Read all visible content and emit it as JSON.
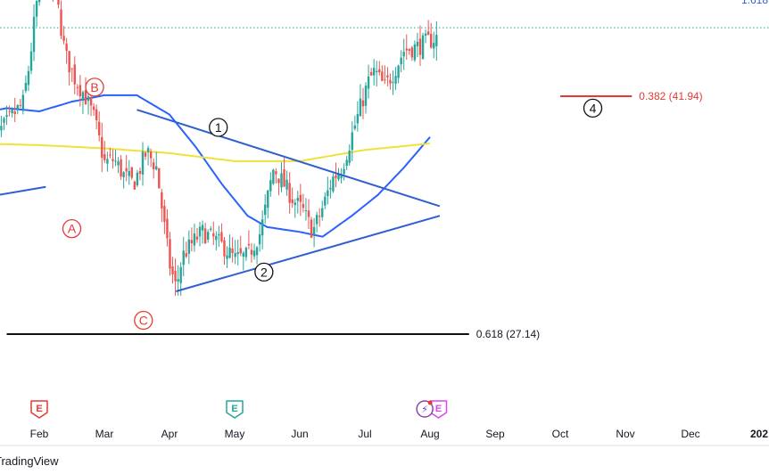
{
  "chart_data": {
    "type": "candlestick",
    "xaxis": {
      "months": [
        {
          "label": "Feb",
          "t": 1.0
        },
        {
          "label": "Mar",
          "t": 2.0
        },
        {
          "label": "Apr",
          "t": 3.0
        },
        {
          "label": "May",
          "t": 4.0
        },
        {
          "label": "Jun",
          "t": 5.0
        },
        {
          "label": "Jul",
          "t": 6.0
        },
        {
          "label": "Aug",
          "t": 7.0
        },
        {
          "label": "Sep",
          "t": 8.0
        },
        {
          "label": "Oct",
          "t": 9.0
        },
        {
          "label": "Nov",
          "t": 10.0
        },
        {
          "label": "Dec",
          "t": 11.0
        },
        {
          "label": "202",
          "t": 12.0
        }
      ]
    },
    "price_path": [
      [
        0.25,
        39.2
      ],
      [
        0.45,
        40.0
      ],
      [
        0.6,
        40.8
      ],
      [
        0.75,
        41.5
      ],
      [
        0.85,
        44.0
      ],
      [
        0.95,
        47.5
      ],
      [
        1.05,
        49.5
      ],
      [
        1.25,
        48.5
      ],
      [
        1.4,
        44.5
      ],
      [
        1.55,
        43.0
      ],
      [
        1.7,
        42.0
      ],
      [
        1.85,
        40.5
      ],
      [
        2.0,
        37.8
      ],
      [
        2.15,
        38.0
      ],
      [
        2.3,
        37.0
      ],
      [
        2.45,
        36.5
      ],
      [
        2.65,
        38.5
      ],
      [
        2.8,
        37.5
      ],
      [
        2.9,
        34.5
      ],
      [
        3.0,
        31.5
      ],
      [
        3.1,
        30.0
      ],
      [
        3.2,
        32.0
      ],
      [
        3.35,
        32.8
      ],
      [
        3.5,
        33.5
      ],
      [
        3.7,
        33.0
      ],
      [
        3.85,
        32.5
      ],
      [
        4.0,
        31.8
      ],
      [
        4.2,
        32.0
      ],
      [
        4.4,
        33.5
      ],
      [
        4.5,
        35.5
      ],
      [
        4.6,
        37.5
      ],
      [
        4.75,
        36.5
      ],
      [
        4.9,
        35.5
      ],
      [
        5.05,
        34.8
      ],
      [
        5.2,
        33.5
      ],
      [
        5.35,
        35.0
      ],
      [
        5.5,
        36.8
      ],
      [
        5.65,
        37.5
      ],
      [
        5.8,
        39.5
      ],
      [
        5.95,
        41.5
      ],
      [
        6.05,
        42.8
      ],
      [
        6.15,
        43.5
      ],
      [
        6.3,
        42.5
      ],
      [
        6.45,
        43.5
      ],
      [
        6.6,
        44.8
      ],
      [
        6.8,
        45.0
      ],
      [
        6.95,
        45.3
      ],
      [
        7.1,
        45.6
      ]
    ],
    "moving_averages": [
      {
        "color": "#2962ff",
        "points": [
          [
            0,
            40.8
          ],
          [
            0.5,
            41.2
          ],
          [
            1.0,
            41.0
          ],
          [
            1.5,
            41.6
          ],
          [
            2.0,
            42.0
          ],
          [
            2.5,
            42.0
          ],
          [
            3.0,
            40.8
          ],
          [
            3.4,
            38.8
          ],
          [
            3.8,
            36.5
          ],
          [
            4.2,
            34.5
          ],
          [
            4.5,
            33.8
          ],
          [
            5.0,
            33.5
          ],
          [
            5.35,
            33.2
          ],
          [
            5.8,
            34.5
          ],
          [
            6.2,
            35.8
          ],
          [
            6.6,
            37.5
          ],
          [
            7.0,
            39.4
          ]
        ]
      },
      {
        "color": "#f0e03a",
        "points": [
          [
            0,
            39.0
          ],
          [
            1.0,
            38.9
          ],
          [
            2.0,
            38.7
          ],
          [
            3.0,
            38.4
          ],
          [
            4.0,
            37.9
          ],
          [
            5.0,
            37.9
          ],
          [
            6.0,
            38.6
          ],
          [
            7.0,
            39.0
          ]
        ]
      }
    ],
    "trendlines": [
      {
        "color": "#2f5fd0",
        "from": [
          2.5,
          41.1
        ],
        "to": [
          7.15,
          35.1
        ]
      },
      {
        "color": "#2f5fd0",
        "from": [
          3.1,
          29.8
        ],
        "to": [
          7.15,
          34.5
        ]
      },
      {
        "color": "#2f5fd0",
        "from": [
          -0.2,
          35.4
        ],
        "to": [
          1.1,
          36.3
        ]
      }
    ],
    "fib_levels": [
      {
        "label": "0.618 (27.14)",
        "value": 27.14,
        "color": "#111111",
        "x_from": 0.5,
        "x_to": 7.6
      },
      {
        "label": "0.382 (41.94)",
        "value": 41.94,
        "color": "#e53935",
        "x_from": 9.0,
        "x_to": 10.1
      },
      {
        "label": "",
        "value": 50.6,
        "color": "#2f5fd0",
        "x_from": 6.6,
        "x_to": 12.0
      }
    ],
    "reference_level": {
      "value": 46.2,
      "color": "#26a69a",
      "style": "dotted"
    },
    "wave_labels": [
      {
        "text": "B",
        "t": 1.85,
        "v": 42.5,
        "color": "#e53935",
        "circled": true
      },
      {
        "text": "A",
        "t": 1.5,
        "v": 33.7,
        "color": "#e53935",
        "circled": true
      },
      {
        "text": "C",
        "t": 2.6,
        "v": 28.0,
        "color": "#e53935",
        "circled": true
      },
      {
        "text": "1",
        "t": 3.75,
        "v": 40.0,
        "color": "#111111",
        "circled": true
      },
      {
        "text": "2",
        "t": 4.45,
        "v": 31.0,
        "color": "#111111",
        "circled": true
      },
      {
        "text": "4",
        "t": 9.5,
        "v": 41.2,
        "color": "#111111",
        "circled": true
      }
    ],
    "top_right_text": {
      "text": "1.618",
      "color": "#2f5fd0"
    },
    "events": [
      {
        "type": "E",
        "t": 1.0,
        "color": "#e53935"
      },
      {
        "type": "E",
        "t": 4.0,
        "color": "#26a69a"
      },
      {
        "type": "E",
        "t": 7.13,
        "color": "#d946ef"
      },
      {
        "type": "split",
        "t": 6.92,
        "color": "#8e44ad"
      }
    ],
    "colors": {
      "up": "#26a69a",
      "down": "#ef5350"
    }
  },
  "footer": {
    "brand": "TradingView"
  }
}
